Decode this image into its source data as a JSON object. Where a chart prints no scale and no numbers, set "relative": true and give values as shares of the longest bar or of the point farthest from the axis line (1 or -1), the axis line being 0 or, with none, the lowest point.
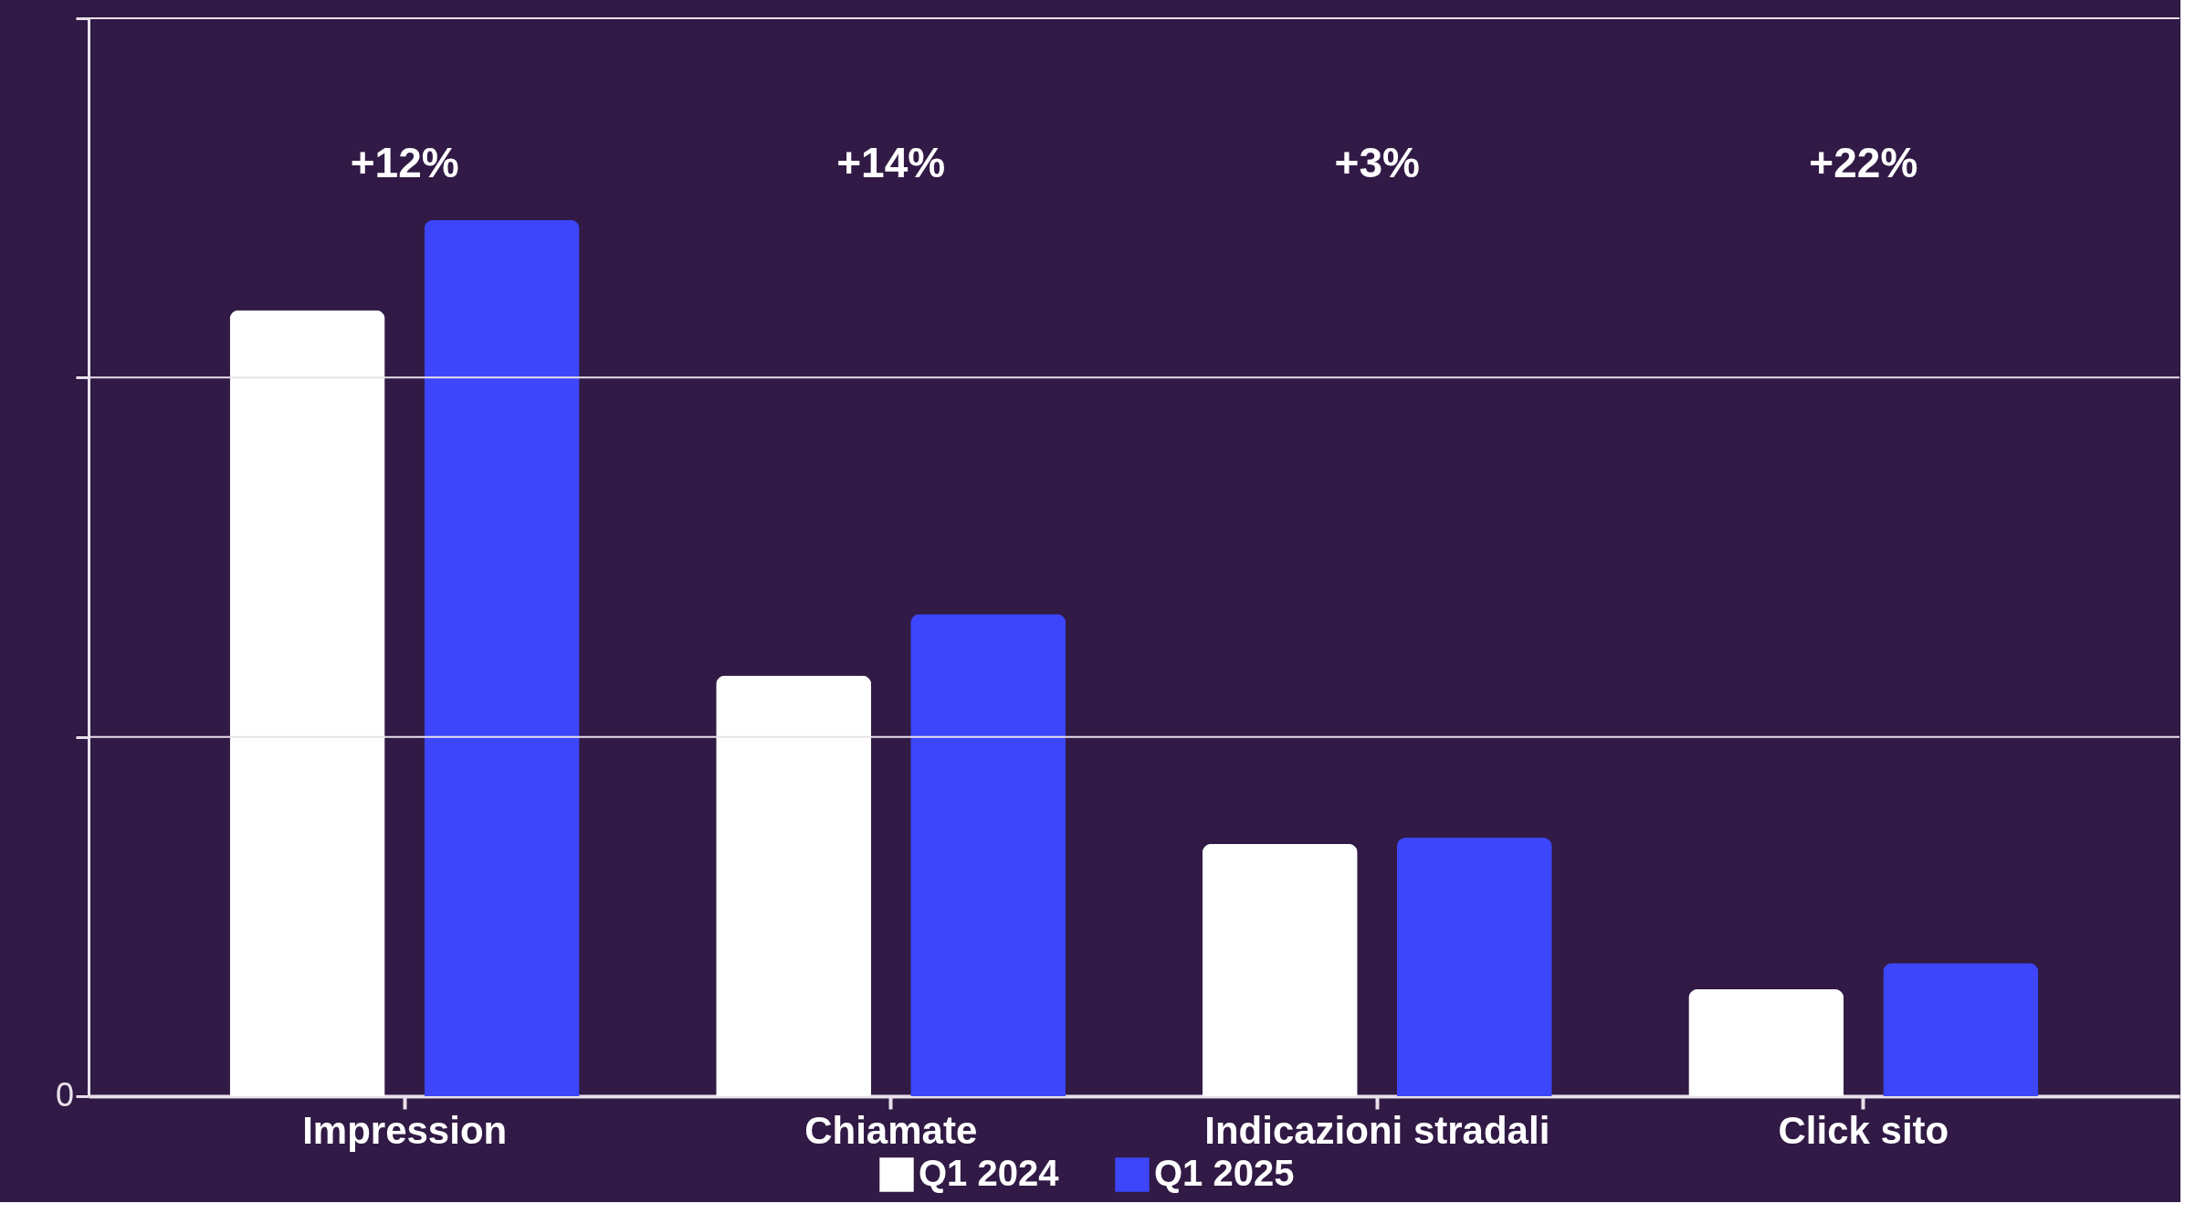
{
  "chart_data": {
    "type": "bar",
    "relative": true,
    "categories": [
      "Impression",
      "Chiamate",
      "Indicazioni stradali",
      "Click sito"
    ],
    "series": [
      {
        "name": "Q1 2024",
        "color": "#ffffff",
        "values": [
          0.897,
          0.48,
          0.288,
          0.122
        ]
      },
      {
        "name": "Q1 2025",
        "color": "#3d46fb",
        "values": [
          1,
          0.55,
          0.295,
          0.152
        ]
      }
    ],
    "annotations": [
      "+12%",
      "+14%",
      "+3%",
      "+22%",
      "0"
    ],
    "ref_lines": [
      {
        "axis": "y",
        "value": 0.41,
        "label": null
      },
      {
        "axis": "y",
        "value": 0.82,
        "label": null
      },
      {
        "axis": "y",
        "value": 1.23,
        "label": null
      }
    ],
    "legend": "bottom"
  }
}
